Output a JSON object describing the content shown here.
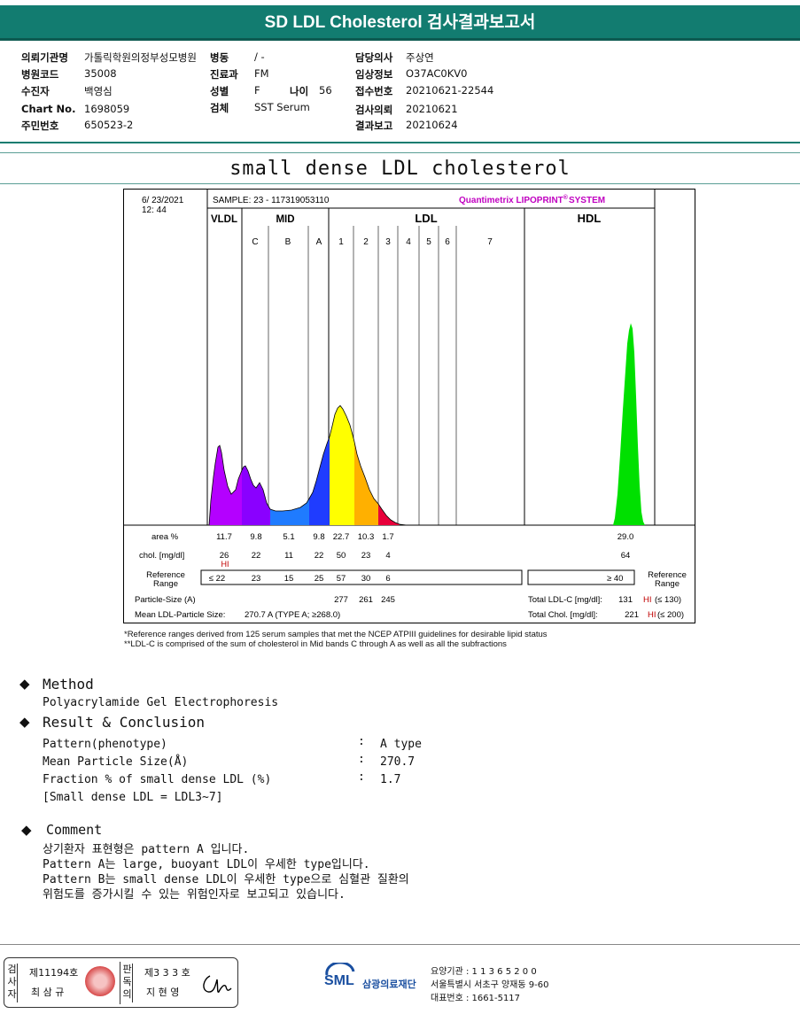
{
  "report": {
    "title": "SD LDL Cholesterol 검사결과보고서",
    "subtitle": "small dense LDL cholesterol"
  },
  "patient": {
    "hospital_label": "의뢰기관명",
    "hospital_value": "가톨릭학원의정부성모병원",
    "ward_label": "병동",
    "ward_value": "/ -",
    "doctor_label": "담당의사",
    "doctor_value": "주상연",
    "code_label": "병원코드",
    "code_value": "35008",
    "dept_label": "진료과",
    "dept_value": "FM",
    "clinical_label": "임상정보",
    "clinical_value": "O37AC0KV0",
    "name_label": "수진자",
    "name_value": "백영심",
    "sex_label": "성별",
    "sex_value": "F",
    "age_label": "나이",
    "age_value": "56",
    "accession_label": "접수번호",
    "accession_value": "20210621-22544",
    "chart_label": "Chart No.",
    "chart_value": "1698059",
    "specimen_label": "검체",
    "specimen_value": "SST Serum",
    "request_label": "검사의뢰",
    "request_value": "20210621",
    "id_label": "주민번호",
    "id_value": "650523-2",
    "reported_label": "결과보고",
    "reported_value": "20210624"
  },
  "chart_data": {
    "type": "area",
    "date": "6/ 23/2021",
    "time": "12: 44",
    "sample": "SAMPLE:   23 - 117319053110",
    "brand": "Quantimetrix LIPOPRINT",
    "brand_suffix": "SYSTEM",
    "brand_mark": "®",
    "groups": [
      "VLDL",
      "MID",
      "LDL",
      "HDL"
    ],
    "bands": [
      "C",
      "B",
      "A",
      "1",
      "2",
      "3",
      "4",
      "5",
      "6",
      "7"
    ],
    "row_labels": {
      "area": "area %",
      "chol": "chol. [mg/dl]",
      "ref_line1": "Reference",
      "ref_line2": "Range",
      "particle": "Particle-Size (A)",
      "mean": "Mean LDL-Particle Size:"
    },
    "columns": [
      "VLDL",
      "C",
      "B",
      "A",
      "1",
      "2",
      "3",
      "HDL"
    ],
    "area_pct": [
      "11.7",
      "9.8",
      "5.1",
      "9.8",
      "22.7",
      "10.3",
      "1.7",
      "29.0"
    ],
    "chol_mg_dl": [
      "26",
      "22",
      "11",
      "22",
      "50",
      "23",
      "4",
      "64"
    ],
    "hi_flag": "HI",
    "ref_range": [
      "≤ 22",
      "23",
      "15",
      "25",
      "57",
      "30",
      "6"
    ],
    "hdl_ref": "≥  40",
    "ref_right_line1": "Reference",
    "ref_right_line2": "Range",
    "particle_size": [
      "277",
      "261",
      "245"
    ],
    "mean_particle": "270.7  A    (TYPE A; ≥268.0)",
    "total_ldl": "Total LDL-C [mg/dl]:",
    "total_ldl_value": "131",
    "total_ldl_flag": "HI",
    "total_ldl_ref": "(≤ 130)",
    "total_chol": "Total Chol. [mg/dl]:",
    "total_chol_value": "221",
    "total_chol_flag": "HI",
    "total_chol_ref": "(≤ 200)",
    "peaks": [
      {
        "name": "VLDL",
        "color": "#b400ff"
      },
      {
        "name": "C",
        "color": "#8a00ff"
      },
      {
        "name": "B",
        "color": "#1f7bff"
      },
      {
        "name": "A",
        "color": "#1f3cff"
      },
      {
        "name": "1",
        "color": "#ffff00"
      },
      {
        "name": "2",
        "color": "#ffb000"
      },
      {
        "name": "3",
        "color": "#e8003a"
      },
      {
        "name": "HDL",
        "color": "#00e000"
      }
    ]
  },
  "notes": {
    "line1": "*Reference ranges derived from 125 serum samples that met the NCEP ATPIII guidelines for desirable lipid status",
    "line2": "**LDL-C is comprised of the sum of cholesterol in Mid bands C through A as well as all the subfractions"
  },
  "method": {
    "heading": "Method",
    "text": "Polyacrylamide Gel Electrophoresis"
  },
  "result": {
    "heading": "Result & Conclusion",
    "rows": [
      {
        "label": "Pattern(phenotype)",
        "value": "A type"
      },
      {
        "label": "Mean Particle Size(Å)",
        "value": "270.7"
      },
      {
        "label": "Fraction % of small dense LDL (%)",
        "value": "1.7"
      }
    ],
    "note": "[Small dense LDL = LDL3~7]",
    "colon": ":"
  },
  "comment": {
    "heading": "Comment",
    "lines": [
      "상기환자 표현형은 pattern A 입니다.",
      "Pattern A는 large, buoyant LDL이 우세한 type입니다.",
      "Pattern B는 small dense LDL이 우세한 type으로 심혈관 질환의",
      "위험도를 증가시킬 수 있는 위험인자로 보고되고 있습니다."
    ]
  },
  "footer": {
    "tester_label": "검사자",
    "tester_no": "제11194호",
    "tester_name": "최 삼 규",
    "reviewer_label": "판독의",
    "reviewer_no": "제3 3 3 호",
    "reviewer_name": "지 현 영",
    "org_logo": "SML",
    "org_name": "삼광의료재단",
    "org_code": "요양기관 : 1 1 3 6 5 2 0 0",
    "org_addr": "서울특별시 서초구 양재동 9-60",
    "org_tel": "대표번호 : 1661-5117"
  }
}
